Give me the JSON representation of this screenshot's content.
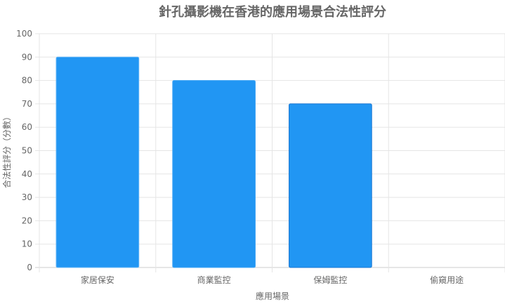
{
  "chart_data": {
    "type": "bar",
    "title": "針孔攝影機在香港的應用場景合法性評分",
    "xlabel": "應用場景",
    "ylabel": "合法性評分（分數）",
    "categories": [
      "家居保安",
      "商業監控",
      "保姆監控",
      "偷窺用途"
    ],
    "values": [
      90,
      80,
      70,
      0
    ],
    "ylim": [
      0,
      100
    ],
    "yticks": [
      0,
      10,
      20,
      30,
      40,
      50,
      60,
      70,
      80,
      90,
      100
    ],
    "grid": true,
    "bar_color": "#2196f3",
    "bar_border_colors": [
      "#64b5f6",
      "#42a5f5",
      "#1976d2",
      "#0d47a1"
    ]
  }
}
